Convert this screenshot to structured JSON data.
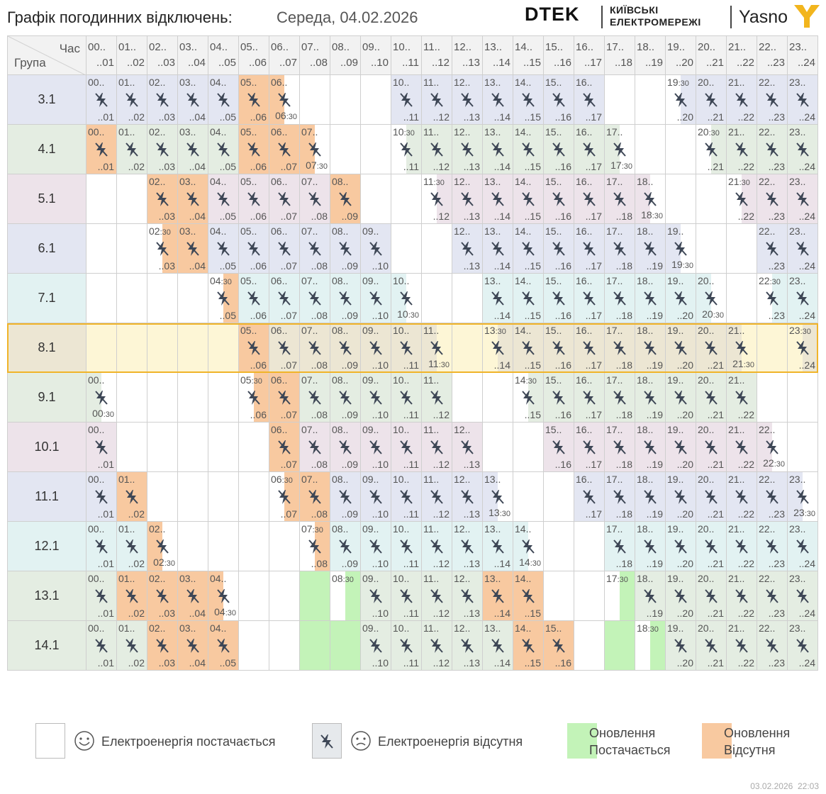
{
  "header": {
    "title": "Графік погодинних відключень:",
    "date": "Середа, 04.02.2026",
    "logo_dtek": "DTEK",
    "logo_kiev_line1": "КИЇВСЬКІ",
    "logo_kiev_line2": "ЕЛЕКТРОМЕРЕЖІ",
    "logo_yasno": "Yasno"
  },
  "table": {
    "hour_label": "Час",
    "group_label": "Група",
    "hours": [
      {
        "top": "00..",
        "bottom": "..01"
      },
      {
        "top": "01..",
        "bottom": "..02"
      },
      {
        "top": "02..",
        "bottom": "..03"
      },
      {
        "top": "03..",
        "bottom": "..04"
      },
      {
        "top": "04..",
        "bottom": "..05"
      },
      {
        "top": "05..",
        "bottom": "..06"
      },
      {
        "top": "06..",
        "bottom": "..07"
      },
      {
        "top": "07..",
        "bottom": "..08"
      },
      {
        "top": "08..",
        "bottom": "..09"
      },
      {
        "top": "09..",
        "bottom": "..10"
      },
      {
        "top": "10..",
        "bottom": "..11"
      },
      {
        "top": "11..",
        "bottom": "..12"
      },
      {
        "top": "12..",
        "bottom": "..13"
      },
      {
        "top": "13..",
        "bottom": "..14"
      },
      {
        "top": "14..",
        "bottom": "..15"
      },
      {
        "top": "15..",
        "bottom": "..16"
      },
      {
        "top": "16..",
        "bottom": "..17"
      },
      {
        "top": "17..",
        "bottom": "..18"
      },
      {
        "top": "18..",
        "bottom": "..19"
      },
      {
        "top": "19..",
        "bottom": "..20"
      },
      {
        "top": "20..",
        "bottom": "..21"
      },
      {
        "top": "21..",
        "bottom": "..22"
      },
      {
        "top": "22..",
        "bottom": "..23"
      },
      {
        "top": "23..",
        "bottom": "..24"
      }
    ],
    "groups": [
      {
        "name": "3.1",
        "tint": "#e3e6f2",
        "cells": [
          "off",
          "off",
          "off",
          "off",
          "off",
          "newoff",
          "newoff:l",
          "",
          "",
          "",
          "off",
          "off",
          "off",
          "off",
          "off",
          "off",
          "off",
          "",
          "",
          "off:r",
          "off",
          "off",
          "off",
          "off"
        ]
      },
      {
        "name": "4.1",
        "tint": "#e4ede2",
        "cells": [
          "newoff",
          "off",
          "off",
          "off",
          "off",
          "newoff",
          "newoff",
          "newoff:l",
          "",
          "",
          "off:r",
          "off",
          "off",
          "off",
          "off",
          "off",
          "off",
          "off:l",
          "",
          "",
          "off:r",
          "off",
          "off",
          "off"
        ]
      },
      {
        "name": "5.1",
        "tint": "#ede3ea",
        "cells": [
          "",
          "",
          "newoff",
          "newoff",
          "off",
          "off",
          "off",
          "off",
          "newoff",
          "",
          "",
          "off:r",
          "off",
          "off",
          "off",
          "off",
          "off",
          "off",
          "off:l",
          "",
          "",
          "off:r",
          "off",
          "off"
        ]
      },
      {
        "name": "6.1",
        "tint": "#e3e6f2",
        "cells": [
          "",
          "",
          "newoff:r",
          "newoff",
          "off",
          "off",
          "off",
          "off",
          "off",
          "off",
          "",
          "",
          "off",
          "off",
          "off",
          "off",
          "off",
          "off",
          "off",
          "off:l",
          "",
          "",
          "off",
          "off"
        ]
      },
      {
        "name": "7.1",
        "tint": "#e2f2f2",
        "cells": [
          "",
          "",
          "",
          "",
          "newoff:r",
          "off",
          "off",
          "off",
          "off",
          "off",
          "off:l",
          "",
          "",
          "off",
          "off",
          "off",
          "off",
          "off",
          "off",
          "off",
          "off:l",
          "",
          "off:r",
          "off"
        ]
      },
      {
        "name": "8.1",
        "tint": "#ece6d3",
        "cells": [
          "",
          "",
          "",
          "",
          "",
          "newoff",
          "off",
          "off",
          "off",
          "off",
          "off",
          "off:l",
          "",
          "off:r",
          "off",
          "off",
          "off",
          "off",
          "off",
          "off",
          "off",
          "off:l",
          "",
          "off:r"
        ]
      },
      {
        "name": "9.1",
        "tint": "#e4ede2",
        "cells": [
          "off:l",
          "",
          "",
          "",
          "",
          "newoff:r",
          "newoff",
          "off",
          "off",
          "off",
          "off",
          "off",
          "",
          "",
          "off:r",
          "off",
          "off",
          "off",
          "off",
          "off",
          "off",
          "off",
          "",
          ""
        ]
      },
      {
        "name": "10.1",
        "tint": "#ede3ea",
        "cells": [
          "off",
          "",
          "",
          "",
          "",
          "",
          "newoff",
          "off",
          "off",
          "off",
          "off",
          "off",
          "off",
          "",
          "",
          "off",
          "off",
          "off",
          "off",
          "off",
          "off",
          "off",
          "off:l",
          ""
        ]
      },
      {
        "name": "11.1",
        "tint": "#e3e6f2",
        "cells": [
          "off",
          "newoff",
          "",
          "",
          "",
          "",
          "newoff:r",
          "newoff",
          "off",
          "off",
          "off",
          "off",
          "off",
          "off:l",
          "",
          "",
          "off",
          "off",
          "off",
          "off",
          "off",
          "off",
          "off",
          "off:l"
        ]
      },
      {
        "name": "12.1",
        "tint": "#e2f2f2",
        "cells": [
          "off",
          "off",
          "newoff:l",
          "",
          "",
          "",
          "",
          "newoff:r",
          "off",
          "off",
          "off",
          "off",
          "off",
          "off",
          "off:l",
          "",
          "",
          "off",
          "off",
          "off",
          "off",
          "off",
          "off",
          "off"
        ]
      },
      {
        "name": "13.1",
        "tint": "#e4ede2",
        "cells": [
          "off",
          "newoff",
          "newoff",
          "newoff",
          "newoff:l",
          "",
          "",
          "newon",
          "newon:r",
          "off",
          "off",
          "off",
          "off",
          "newoff",
          "newoff",
          "",
          "",
          "newon:r",
          "off",
          "off",
          "off",
          "off",
          "off",
          "off"
        ]
      },
      {
        "name": "14.1",
        "tint": "#e4ede2",
        "cells": [
          "off",
          "off",
          "newoff",
          "newoff",
          "newoff",
          "",
          "",
          "newon",
          "newon",
          "off",
          "off",
          "off",
          "off",
          "off",
          "newoff",
          "newoff",
          "",
          "newon",
          "newon:r",
          "off",
          "off",
          "off",
          "off",
          "off"
        ]
      }
    ],
    "highlight_group": "8.1",
    "highlight_color": "#fdf6d6",
    "highlight_border": "#f0b429"
  },
  "colors": {
    "newoff": "#f8c9a0",
    "newon": "#c3f3b8",
    "icon": "#3e4756",
    "header_bg": "#f2f2f2"
  },
  "legend": {
    "on_label": "Електроенергія постачається",
    "off_label": "Електроенергія відсутня",
    "upd_on_line1": "Оновлення",
    "upd_on_line2": "Постачається",
    "upd_off_line1": "Оновлення",
    "upd_off_line2": "Відсутня"
  },
  "footer": {
    "date": "03.02.2026",
    "time": "22:03"
  }
}
